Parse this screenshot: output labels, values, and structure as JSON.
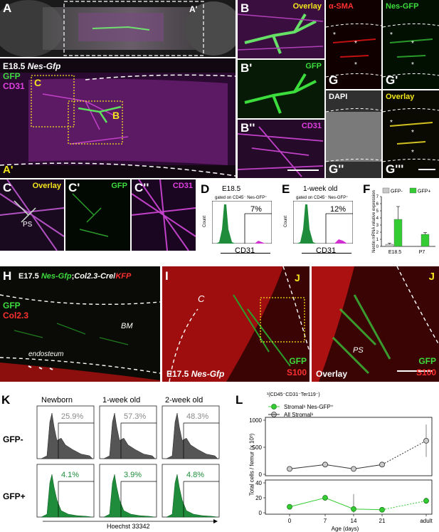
{
  "panelA": {
    "letter": "A",
    "inset_label": "A'",
    "title": "E18.5",
    "gene": "Nes-Gfp",
    "ch1": "GFP",
    "ch2": "CD31",
    "box_c": "C",
    "box_b": "B",
    "bottom_letter": "A'"
  },
  "panelB": {
    "b": "B",
    "b_ch": "Overlay",
    "b1": "B'",
    "b1_ch": "GFP",
    "b2": "B''",
    "b2_ch": "CD31"
  },
  "panelG": {
    "g": "G",
    "g_ch": "α-SMA",
    "g1": "G'",
    "g1_ch": "Nes-GFP",
    "g2": "G''",
    "g2_ch": "DAPI",
    "g3": "G'''",
    "g3_ch": "Overlay"
  },
  "panelC": {
    "c": "C",
    "c_ch": "Overlay",
    "ps": "PS",
    "c1": "C'",
    "c1_ch": "GFP",
    "c2": "C''",
    "c2_ch": "CD31"
  },
  "panelD": {
    "letter": "D",
    "title": "E18.5",
    "gate": "gated on CD45⁻ Nes-GFP⁺",
    "pct": "7%",
    "xlabel": "CD31",
    "ylabel": "Count"
  },
  "panelE": {
    "letter": "E",
    "title": "1-week old",
    "gate": "gated on CD45⁻ Nes-GFP⁺",
    "pct": "12%",
    "xlabel": "CD31",
    "ylabel": "Count"
  },
  "panelF": {
    "letter": "F",
    "ylabel": "Nestin mRNA relative expression",
    "leg1": "GFP-",
    "leg2": "GFP+"
  },
  "panelH": {
    "letter": "H",
    "title": "E17.5",
    "gene_a": "Nes-Gfp",
    "sep": ";",
    "gene_b": "Col2.3-Cre",
    "gene_c": "KFP",
    "slash": "/",
    "ch1": "GFP",
    "ch2": "Col2.3",
    "bm": "BM",
    "endo": "endosteum"
  },
  "panelI": {
    "letter": "I",
    "c": "C",
    "j": "J",
    "ch1": "GFP",
    "ch2": "S100",
    "title": "E17.5",
    "gene": "Nes-Gfp"
  },
  "panelJ": {
    "letter": "J",
    "ps": "PS",
    "ch1": "GFP",
    "ch2": "S100",
    "overlay": "Overlay"
  },
  "panelK": {
    "letter": "K",
    "cols": [
      "Newborn",
      "1-week old",
      "2-week old"
    ],
    "rows": [
      "GFP-",
      "GFP+"
    ],
    "pct_neg": [
      "25.9%",
      "57.3%",
      "48.3%"
    ],
    "pct_pos": [
      "4.1%",
      "3.9%",
      "4.8%"
    ],
    "xlabel": "Hoechst 33342"
  },
  "panelL": {
    "letter": "L",
    "footnote": "¹(CD45⁻CD31⁻Ter119⁻)",
    "leg1": "Stromal¹ Nes-GFP⁺",
    "leg2": "All Stromal¹",
    "ylabel": "Total cells / femur (x 10³)"
  },
  "chart_data": [
    {
      "type": "bar",
      "title": "",
      "ylabel": "Nestin mRNA relative expression",
      "categories": [
        "E18.5",
        "P7"
      ],
      "series": [
        {
          "name": "GFP-",
          "values": [
            0.3,
            0.0
          ],
          "errors": [
            0.15,
            0.0
          ],
          "color": "#c8c8c8"
        },
        {
          "name": "GFP+",
          "values": [
            3.8,
            1.7
          ],
          "errors": [
            1.8,
            0.25
          ],
          "color": "#33cc33"
        }
      ],
      "ylim": [
        0,
        7
      ],
      "yticks": [
        0,
        1,
        2,
        3,
        4,
        5,
        6,
        7
      ]
    },
    {
      "type": "line",
      "ylabel": "Total cells / femur (x 10³)",
      "xlabel": "Age (days)",
      "x": [
        "0",
        "7",
        "14",
        "21",
        "adult"
      ],
      "series": [
        {
          "name": "Stromal¹ Nes-GFP⁺",
          "values": [
            8,
            20,
            5,
            4,
            16
          ],
          "errors": [
            2,
            4,
            20,
            2,
            4
          ],
          "color": "#33cc33"
        },
        {
          "name": "All Stromal¹",
          "values": [
            100,
            180,
            100,
            180,
            620
          ],
          "errors": [
            10,
            15,
            10,
            30,
            300
          ],
          "color": "#888888"
        }
      ],
      "yticks_lower": [
        0,
        20,
        40
      ],
      "yticks_upper": [
        0,
        500,
        1000
      ]
    }
  ]
}
